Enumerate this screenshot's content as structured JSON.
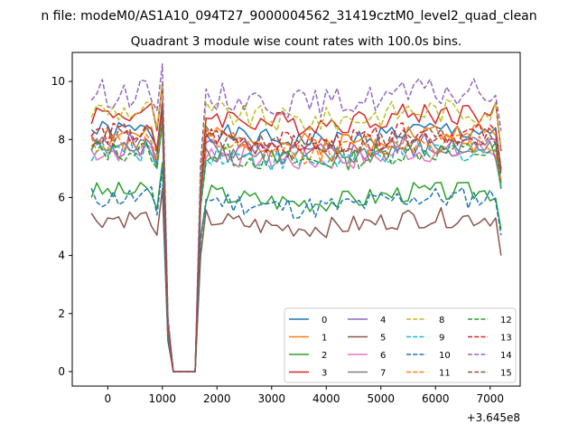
{
  "chart_data": {
    "type": "line",
    "suptitle": "n file: modeM0/AS1A10_094T27_9000004562_31419cztM0_level2_quad_clean",
    "title": "Quadrant 3 module wise count rates with 100.0s bins.",
    "xlabel": "",
    "ylabel": "",
    "x_offset_label": "+3.645e8",
    "xlim": [
      -650,
      7550
    ],
    "ylim": [
      -0.5,
      11.0
    ],
    "x_ticks": [
      0,
      1000,
      2000,
      3000,
      4000,
      5000,
      6000,
      7000
    ],
    "y_ticks": [
      0,
      2,
      4,
      6,
      8,
      10
    ],
    "x_tick_labels": [
      "0",
      "1000",
      "2000",
      "3000",
      "4000",
      "5000",
      "6000",
      "7000"
    ],
    "y_tick_labels": [
      "0",
      "2",
      "4",
      "6",
      "8",
      "10"
    ],
    "legend": {
      "placement": "lower-right",
      "columns": 4
    },
    "series": [
      {
        "name": "0",
        "color": "#1f77b4",
        "style": "solid",
        "level": 8.3,
        "amp": 0.35,
        "seed": 1
      },
      {
        "name": "1",
        "color": "#ff7f0e",
        "style": "solid",
        "level": 8.2,
        "amp": 0.4,
        "seed": 2
      },
      {
        "name": "2",
        "color": "#2ca02c",
        "style": "solid",
        "level": 6.2,
        "amp": 0.35,
        "seed": 3
      },
      {
        "name": "3",
        "color": "#d62728",
        "style": "solid",
        "level": 8.9,
        "amp": 0.4,
        "seed": 4
      },
      {
        "name": "4",
        "color": "#9467bd",
        "style": "solid",
        "level": 7.8,
        "amp": 0.45,
        "seed": 5
      },
      {
        "name": "5",
        "color": "#8c564b",
        "style": "solid",
        "level": 5.3,
        "amp": 0.35,
        "seed": 6
      },
      {
        "name": "6",
        "color": "#e377c2",
        "style": "solid",
        "level": 7.6,
        "amp": 0.4,
        "seed": 7
      },
      {
        "name": "7",
        "color": "#7f7f7f",
        "style": "solid",
        "level": 7.7,
        "amp": 0.4,
        "seed": 8
      },
      {
        "name": "8",
        "color": "#bcbd22",
        "style": "dashed",
        "level": 9.0,
        "amp": 0.45,
        "seed": 9
      },
      {
        "name": "9",
        "color": "#17becf",
        "style": "dashed",
        "level": 7.6,
        "amp": 0.4,
        "seed": 10
      },
      {
        "name": "10",
        "color": "#1f77b4",
        "style": "dashed",
        "level": 6.0,
        "amp": 0.4,
        "seed": 11
      },
      {
        "name": "11",
        "color": "#ff7f0e",
        "style": "dashed",
        "level": 7.9,
        "amp": 0.4,
        "seed": 12
      },
      {
        "name": "12",
        "color": "#2ca02c",
        "style": "dashed",
        "level": 7.6,
        "amp": 0.4,
        "seed": 13
      },
      {
        "name": "13",
        "color": "#d62728",
        "style": "dashed",
        "level": 8.2,
        "amp": 0.4,
        "seed": 14
      },
      {
        "name": "14",
        "color": "#9467bd",
        "style": "dashed",
        "level": 9.6,
        "amp": 0.5,
        "seed": 15
      },
      {
        "name": "15",
        "color": "#8c564b",
        "style": "dashed",
        "level": 8.1,
        "amp": 0.4,
        "seed": 16
      }
    ]
  }
}
